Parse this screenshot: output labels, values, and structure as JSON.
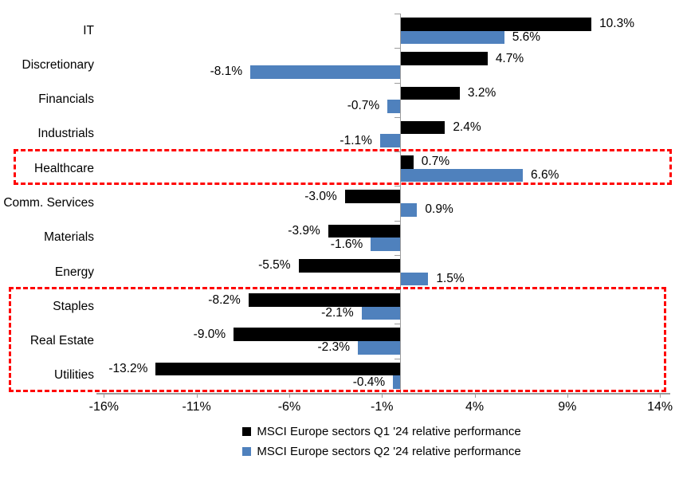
{
  "chart_data": {
    "type": "bar",
    "orientation": "horizontal",
    "title": "",
    "categories": [
      "IT",
      "Discretionary",
      "Financials",
      "Industrials",
      "Healthcare",
      "Comm. Services",
      "Materials",
      "Energy",
      "Staples",
      "Real Estate",
      "Utilities"
    ],
    "series": [
      {
        "name": "MSCI Europe sectors Q1 '24 relative performance",
        "color": "#000000",
        "values": [
          10.3,
          4.7,
          3.2,
          2.4,
          0.7,
          -3.0,
          -3.9,
          -5.5,
          -8.2,
          -9.0,
          -13.2
        ],
        "labels": [
          "10.3%",
          "4.7%",
          "3.2%",
          "2.4%",
          "0.7%",
          "-3.0%",
          "-3.9%",
          "-5.5%",
          "-8.2%",
          "-9.0%",
          "-13.2%"
        ]
      },
      {
        "name": "MSCI Europe sectors Q2 '24 relative performance",
        "color": "#4f81bd",
        "values": [
          5.6,
          -8.1,
          -0.7,
          -1.1,
          6.6,
          0.9,
          -1.6,
          1.5,
          -2.1,
          -2.3,
          -0.4
        ],
        "labels": [
          "5.6%",
          "-8.1%",
          "-0.7%",
          "-1.1%",
          "6.6%",
          "0.9%",
          "-1.6%",
          "1.5%",
          "-2.1%",
          "-2.3%",
          "-0.4%"
        ]
      }
    ],
    "x_axis": {
      "tick_labels": [
        "-16%",
        "-11%",
        "-6%",
        "-1%",
        "4%",
        "9%",
        "14%"
      ],
      "tick_values": [
        -16,
        -11,
        -6,
        -1,
        4,
        9,
        14
      ],
      "range": [
        -16.5,
        14.6
      ],
      "grid": false
    },
    "legend_position": "bottom",
    "axis_color": "#9c9c9c",
    "highlight_color": "#ff0000",
    "highlights": [
      {
        "name": "healthcare-highlight",
        "categories": [
          "Healthcare"
        ]
      },
      {
        "name": "defensives-highlight",
        "categories": [
          "Staples",
          "Real Estate",
          "Utilities"
        ]
      }
    ]
  }
}
